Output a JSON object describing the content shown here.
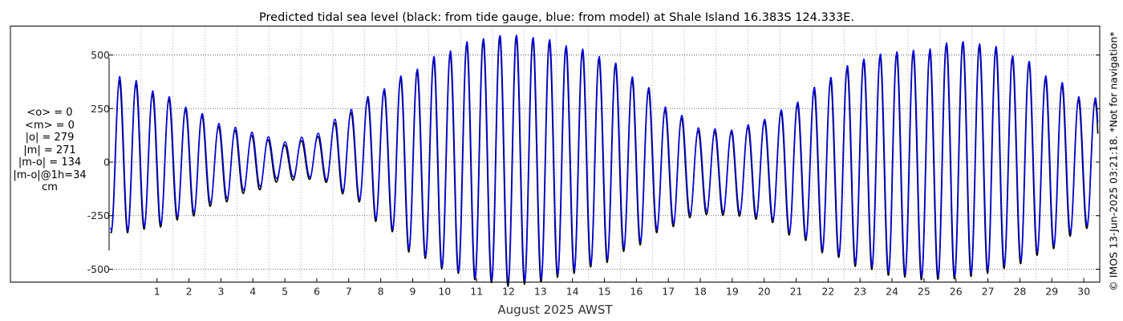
{
  "chart_data": {
    "type": "line",
    "title": "Predicted tidal sea level (black: from tide gauge, blue: from model) at Shale Island 16.383S 124.333E.",
    "xlabel": "August 2025 AWST",
    "ylabel": "",
    "x_ticks": [
      "1",
      "2",
      "3",
      "4",
      "5",
      "6",
      "7",
      "8",
      "9",
      "10",
      "11",
      "12",
      "13",
      "14",
      "15",
      "16",
      "17",
      "18",
      "19",
      "20",
      "21",
      "22",
      "23",
      "24",
      "25",
      "26",
      "27",
      "28",
      "29",
      "30"
    ],
    "y_ticks": [
      500,
      250,
      0,
      -250,
      -500
    ],
    "ylim": [
      -560,
      635
    ],
    "x_range_days": [
      0,
      31
    ],
    "grid": "dotted",
    "series": [
      {
        "name": "from tide gauge",
        "color": "#000000",
        "peak_days": [
          0.5,
          1.5,
          2.5,
          3.5,
          4.5,
          5.5,
          6.5,
          7.5,
          8.5,
          9.5,
          10.5,
          11.5,
          12.5,
          13.5,
          14.5,
          15.5,
          16.5,
          17.5,
          18.5,
          19.5,
          20.5,
          21.5,
          22.5,
          23.5,
          24.5,
          25.5,
          26.5,
          27.5,
          28.5,
          29.5,
          30.5
        ],
        "high_water": [
          380,
          315,
          245,
          165,
          125,
          80,
          120,
          230,
          330,
          420,
          500,
          565,
          590,
          570,
          530,
          480,
          380,
          240,
          145,
          140,
          190,
          270,
          380,
          470,
          505,
          510,
          560,
          540,
          480,
          380,
          285
        ],
        "low_water": [
          -330,
          -305,
          -255,
          -190,
          -135,
          -85,
          -80,
          -155,
          -285,
          -425,
          -500,
          -550,
          -580,
          -560,
          -520,
          -470,
          -390,
          -305,
          -245,
          -250,
          -270,
          -350,
          -430,
          -490,
          -530,
          -550,
          -545,
          -520,
          -475,
          -405,
          -310
        ]
      },
      {
        "name": "from model",
        "color": "#0000ff",
        "peak_days": [
          0.5,
          1.5,
          2.5,
          3.5,
          4.5,
          5.5,
          6.5,
          7.5,
          8.5,
          9.5,
          10.5,
          11.5,
          12.5,
          13.5,
          14.5,
          15.5,
          16.5,
          17.5,
          18.5,
          19.5,
          20.5,
          21.5,
          22.5,
          23.5,
          24.5,
          25.5,
          26.5,
          27.5,
          28.5,
          29.5,
          30.5
        ],
        "high_water": [
          400,
          330,
          255,
          180,
          140,
          95,
          135,
          245,
          340,
          430,
          515,
          575,
          595,
          580,
          540,
          490,
          395,
          255,
          160,
          150,
          200,
          280,
          395,
          480,
          515,
          525,
          565,
          550,
          490,
          395,
          300
        ],
        "low_water": [
          -320,
          -290,
          -240,
          -175,
          -120,
          -70,
          -70,
          -140,
          -270,
          -410,
          -490,
          -540,
          -565,
          -545,
          -505,
          -455,
          -375,
          -290,
          -230,
          -235,
          -255,
          -335,
          -415,
          -475,
          -515,
          -535,
          -530,
          -505,
          -460,
          -390,
          -295
        ]
      }
    ]
  },
  "stats": {
    "mean_obs": "<o> = 0",
    "mean_model": "<m> = 0",
    "abs_obs": "|o| = 279",
    "abs_model": "|m| = 271",
    "abs_diff": "|m-o| = 134",
    "abs_diff_1h": "|m-o|@1h=34",
    "unit": "cm"
  },
  "credit": "© IMOS 13-Jun-2025 03:21:18. *Not for navigation*"
}
